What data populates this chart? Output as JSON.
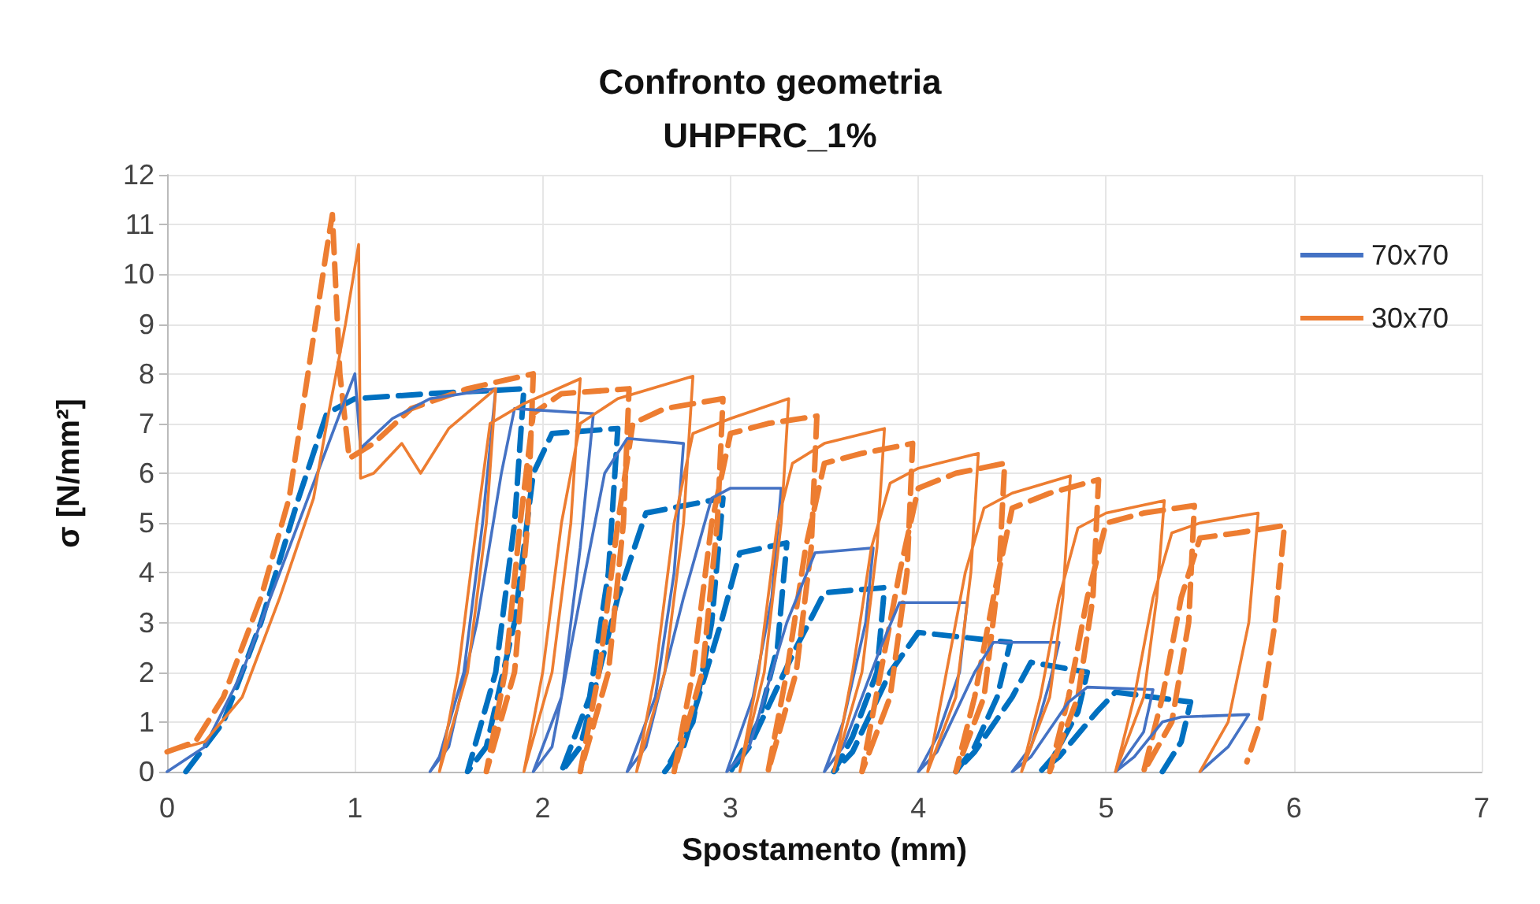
{
  "chart_data": {
    "type": "line",
    "title": "Confronto geometria",
    "subtitle": "UHPFRC_1%",
    "xlabel": "Spostamento (mm)",
    "ylabel": "σ [N/mm²]",
    "xlim": [
      0,
      7
    ],
    "xticks": [
      0,
      1,
      2,
      3,
      4,
      5,
      6,
      7
    ],
    "ylim": [
      0,
      12
    ],
    "yticks": [
      0,
      1,
      2,
      3,
      4,
      5,
      6,
      7,
      8,
      9,
      10,
      11,
      12
    ],
    "grid": true,
    "legend": "top right",
    "marker": "none",
    "series": [
      {
        "name": "70x70",
        "color": "#4472c4",
        "line_style": "solid",
        "x": [
          0,
          0.2,
          0.4,
          0.6,
          0.8,
          1.0,
          1.03,
          1.2,
          1.4,
          1.75,
          1.68,
          1.58,
          1.45,
          1.4,
          1.5,
          1.65,
          1.78,
          1.85,
          2.27,
          2.2,
          2.1,
          1.95,
          2.05,
          2.2,
          2.33,
          2.45,
          2.75,
          2.7,
          2.6,
          2.45,
          2.55,
          2.75,
          2.9,
          3.0,
          3.27,
          3.22,
          3.12,
          2.98,
          3.1,
          3.3,
          3.45,
          3.76,
          3.72,
          3.6,
          3.5,
          3.6,
          3.8,
          3.9,
          4.26,
          4.22,
          4.1,
          4.0,
          4.1,
          4.3,
          4.4,
          4.75,
          4.7,
          4.6,
          4.5,
          4.6,
          4.8,
          4.9,
          5.25,
          5.2,
          5.05,
          5.15,
          5.3,
          5.4,
          5.76,
          5.65,
          5.5
        ],
        "values": [
          0,
          0.5,
          2,
          4,
          6,
          8.0,
          6.5,
          7.1,
          7.5,
          7.7,
          5,
          2,
          0.3,
          0,
          0.5,
          3,
          6,
          7.3,
          7.2,
          4.5,
          1.5,
          0,
          0.5,
          3.5,
          6,
          6.7,
          6.6,
          4,
          1.5,
          0,
          0.5,
          3.5,
          5.5,
          5.7,
          5.7,
          3.5,
          1.5,
          0,
          0.5,
          3,
          4.4,
          4.5,
          3,
          1,
          0,
          0.5,
          2.5,
          3.4,
          3.4,
          2,
          0.7,
          0,
          0.4,
          2,
          2.6,
          2.6,
          1.8,
          0.5,
          0,
          0.3,
          1.4,
          1.7,
          1.65,
          0.8,
          0,
          0.3,
          1,
          1.1,
          1.15,
          0.5,
          0
        ]
      },
      {
        "color": "#0070c0",
        "line_style": "dashed",
        "x": [
          0.1,
          0.3,
          0.5,
          0.7,
          0.85,
          1.0,
          1.4,
          1.9,
          1.85,
          1.75,
          1.6,
          1.7,
          1.85,
          1.95,
          2.05,
          2.4,
          2.35,
          2.25,
          2.1,
          2.2,
          2.4,
          2.55,
          2.96,
          2.9,
          2.8,
          2.65,
          2.75,
          2.95,
          3.05,
          3.3,
          3.25,
          3.15,
          3.0,
          3.1,
          3.35,
          3.5,
          3.82,
          3.78,
          3.65,
          3.55,
          3.65,
          3.85,
          4.0,
          4.49,
          4.42,
          4.3,
          4.2,
          4.3,
          4.5,
          4.6,
          4.9,
          4.85,
          4.72,
          4.65,
          4.75,
          4.95,
          5.05,
          5.45,
          5.4,
          5.3
        ],
        "values": [
          0,
          1,
          3,
          5.5,
          7.2,
          7.5,
          7.6,
          7.7,
          5,
          2,
          0,
          0.5,
          3,
          6,
          6.8,
          6.9,
          4,
          1.5,
          0,
          0.5,
          3.5,
          5.2,
          5.5,
          3,
          1,
          0,
          0.5,
          3,
          4.4,
          4.6,
          2.5,
          1,
          0,
          0.5,
          2.5,
          3.6,
          3.7,
          2,
          0.7,
          0,
          0.4,
          2,
          2.8,
          2.6,
          1.5,
          0.5,
          0,
          0.4,
          1.5,
          2.2,
          2.0,
          1.2,
          0.3,
          0,
          0.3,
          1.2,
          1.6,
          1.4,
          0.6,
          0
        ]
      },
      {
        "name": "30x70",
        "color": "#ed7d31",
        "line_style": "solid",
        "x": [
          0,
          0.2,
          0.4,
          0.6,
          0.78,
          0.85,
          0.95,
          1.02,
          1.03,
          1.1,
          1.25,
          1.35,
          1.5,
          1.75,
          1.7,
          1.6,
          1.45,
          1.55,
          1.65,
          1.72,
          1.9,
          2.2,
          2.15,
          2.05,
          1.9,
          2.0,
          2.1,
          2.2,
          2.4,
          2.8,
          2.75,
          2.65,
          2.5,
          2.6,
          2.7,
          2.8,
          3.0,
          3.31,
          3.27,
          3.18,
          3.05,
          3.15,
          3.25,
          3.33,
          3.5,
          3.82,
          3.78,
          3.7,
          3.55,
          3.65,
          3.75,
          3.85,
          4.0,
          4.32,
          4.28,
          4.2,
          4.05,
          4.15,
          4.25,
          4.35,
          4.5,
          4.81,
          4.77,
          4.7,
          4.55,
          4.65,
          4.75,
          4.85,
          5.0,
          5.31,
          5.27,
          5.2,
          5.05,
          5.15,
          5.25,
          5.35,
          5.5,
          5.81,
          5.76,
          5.65,
          5.5
        ],
        "values": [
          0.4,
          0.6,
          1.5,
          3.5,
          5.5,
          7,
          9,
          10.6,
          5.9,
          6,
          6.6,
          6.0,
          6.9,
          7.7,
          5,
          2,
          0,
          2,
          5,
          7,
          7.4,
          7.9,
          5,
          2,
          0,
          2,
          5,
          7,
          7.5,
          7.95,
          5,
          2,
          0,
          2,
          5,
          6.8,
          7.1,
          7.5,
          5,
          2,
          0,
          2,
          5,
          6.2,
          6.6,
          6.9,
          4.5,
          2,
          0,
          2,
          4.5,
          5.8,
          6.1,
          6.4,
          4,
          1.5,
          0,
          2,
          4,
          5.3,
          5.6,
          5.95,
          3.5,
          1.5,
          0,
          1.5,
          3.5,
          4.9,
          5.2,
          5.45,
          3.5,
          1.5,
          0,
          1.5,
          3.5,
          4.8,
          5.0,
          5.2,
          3,
          1,
          0
        ]
      },
      {
        "color": "#ed7d31",
        "line_style": "dashed",
        "x": [
          0,
          0.15,
          0.3,
          0.5,
          0.65,
          0.75,
          0.85,
          0.88,
          0.92,
          0.97,
          1.1,
          1.3,
          1.6,
          1.95,
          1.92,
          1.85,
          1.7,
          1.8,
          1.88,
          1.95,
          2.1,
          2.46,
          2.43,
          2.35,
          2.2,
          2.3,
          2.4,
          2.48,
          2.65,
          2.96,
          2.93,
          2.85,
          2.7,
          2.8,
          2.9,
          3.0,
          3.2,
          3.46,
          3.43,
          3.35,
          3.2,
          3.3,
          3.4,
          3.5,
          3.7,
          3.97,
          3.94,
          3.85,
          3.7,
          3.8,
          3.9,
          4.0,
          4.2,
          4.46,
          4.43,
          4.35,
          4.2,
          4.3,
          4.4,
          4.5,
          4.7,
          4.96,
          4.93,
          4.85,
          4.7,
          4.8,
          4.9,
          5.0,
          5.2,
          5.47,
          5.44,
          5.35,
          5.2,
          5.3,
          5.4,
          5.5,
          5.7,
          5.95,
          5.9,
          5.82,
          5.75
        ],
        "values": [
          0.4,
          0.6,
          1.5,
          3.5,
          5.5,
          8,
          10.5,
          11.2,
          8,
          6.3,
          6.6,
          7.3,
          7.7,
          8.0,
          5,
          2,
          0,
          2,
          5,
          7.2,
          7.6,
          7.7,
          5,
          2,
          0,
          2,
          5,
          7.0,
          7.3,
          7.5,
          5,
          2,
          0,
          2,
          5,
          6.8,
          7.0,
          7.15,
          4.5,
          2,
          0,
          2,
          4.5,
          6.2,
          6.4,
          6.6,
          4,
          1.5,
          0,
          2,
          4,
          5.7,
          6.0,
          6.2,
          4,
          1.5,
          0,
          1.5,
          3.5,
          5.3,
          5.6,
          5.87,
          3.5,
          1.5,
          0,
          1.5,
          3.5,
          5.0,
          5.2,
          5.35,
          3,
          1,
          0,
          1.5,
          3.5,
          4.7,
          4.8,
          4.95,
          3,
          1,
          0.2
        ]
      }
    ]
  }
}
